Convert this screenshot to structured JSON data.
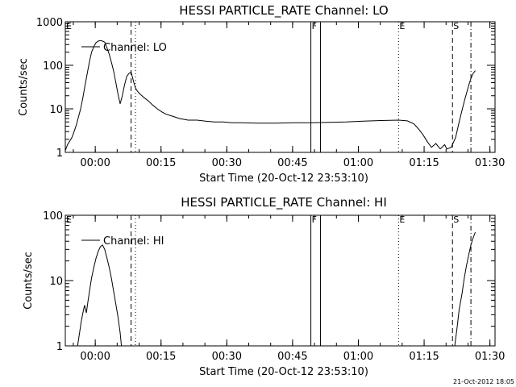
{
  "footer_stamp": "21-Oct-2012 18:05",
  "chart_data": [
    {
      "type": "line",
      "title": "HESSI PARTICLE_RATE Channel: LO",
      "xlabel": "Start Time (20-Oct-12 23:53:10)",
      "ylabel": "Counts/sec",
      "x_unit": "minutes after start",
      "xlim": [
        0,
        98
      ],
      "ylim": [
        1,
        1000
      ],
      "yscale": "log",
      "xticks": [
        {
          "x": 6.83,
          "label": "00:00"
        },
        {
          "x": 21.83,
          "label": "00:15"
        },
        {
          "x": 36.83,
          "label": "00:30"
        },
        {
          "x": 51.83,
          "label": "00:45"
        },
        {
          "x": 66.83,
          "label": "01:00"
        },
        {
          "x": 81.83,
          "label": "01:15"
        },
        {
          "x": 96.83,
          "label": "01:30"
        }
      ],
      "yticks": [
        {
          "y": 1,
          "label": "1"
        },
        {
          "y": 10,
          "label": "10"
        },
        {
          "y": 100,
          "label": "100"
        },
        {
          "y": 1000,
          "label": "1000"
        }
      ],
      "legend": {
        "text": "Channel: LO",
        "position": "top-left"
      },
      "markers": [
        {
          "x": 0.0,
          "label": "E",
          "style": "none"
        },
        {
          "x": 15.0,
          "label": "",
          "style": "dash"
        },
        {
          "x": 16.0,
          "label": "",
          "style": "dot"
        },
        {
          "x": 56.0,
          "label": "F",
          "style": "solid"
        },
        {
          "x": 58.2,
          "label": "",
          "style": "solid"
        },
        {
          "x": 76.0,
          "label": "E",
          "style": "dot"
        },
        {
          "x": 88.3,
          "label": "S",
          "style": "dash"
        },
        {
          "x": 92.5,
          "label": "",
          "style": "dashdot"
        }
      ],
      "series": [
        {
          "values": [
            [
              0.0,
              1.1
            ],
            [
              0.5,
              1.5
            ],
            [
              1.0,
              1.8
            ],
            [
              1.5,
              2.2
            ],
            [
              2.0,
              3.0
            ],
            [
              2.5,
              4.2
            ],
            [
              3.0,
              6.5
            ],
            [
              3.5,
              10
            ],
            [
              4.0,
              18
            ],
            [
              4.5,
              35
            ],
            [
              5.0,
              65
            ],
            [
              5.5,
              120
            ],
            [
              6.0,
              200
            ],
            [
              6.5,
              270
            ],
            [
              7.0,
              330
            ],
            [
              7.5,
              360
            ],
            [
              8.0,
              370
            ],
            [
              8.5,
              360
            ],
            [
              9.0,
              340
            ],
            [
              9.5,
              250
            ],
            [
              10.0,
              180
            ],
            [
              10.5,
              120
            ],
            [
              11.0,
              75
            ],
            [
              11.5,
              42
            ],
            [
              12.0,
              22
            ],
            [
              12.5,
              13
            ],
            [
              13.0,
              20
            ],
            [
              13.5,
              35
            ],
            [
              14.0,
              55
            ],
            [
              14.5,
              65
            ],
            [
              15.0,
              70
            ],
            [
              15.5,
              45
            ],
            [
              16.0,
              30
            ],
            [
              16.5,
              25
            ],
            [
              17.0,
              22
            ],
            [
              18.0,
              18
            ],
            [
              19.0,
              15
            ],
            [
              20.0,
              12
            ],
            [
              21.0,
              10
            ],
            [
              22.0,
              8.5
            ],
            [
              23.0,
              7.5
            ],
            [
              24.0,
              7.0
            ],
            [
              25.0,
              6.5
            ],
            [
              26.0,
              6.0
            ],
            [
              28.0,
              5.5
            ],
            [
              30.0,
              5.5
            ],
            [
              32.0,
              5.2
            ],
            [
              34.0,
              5.0
            ],
            [
              36.0,
              5.0
            ],
            [
              38.0,
              4.8
            ],
            [
              40.0,
              4.8
            ],
            [
              44.0,
              4.7
            ],
            [
              48.0,
              4.7
            ],
            [
              52.0,
              4.8
            ],
            [
              56.0,
              4.8
            ],
            [
              60.0,
              4.9
            ],
            [
              64.0,
              5.0
            ],
            [
              68.0,
              5.2
            ],
            [
              72.0,
              5.4
            ],
            [
              76.0,
              5.5
            ],
            [
              78.0,
              5.3
            ],
            [
              79.5,
              4.5
            ],
            [
              80.5,
              3.5
            ],
            [
              81.5,
              2.6
            ],
            [
              82.5,
              1.8
            ],
            [
              83.5,
              1.3
            ],
            [
              84.5,
              1.6
            ],
            [
              85.5,
              1.2
            ],
            [
              86.5,
              1.5
            ],
            [
              87.0,
              1.2
            ],
            [
              88.0,
              1.3
            ],
            [
              89.0,
              2.2
            ],
            [
              90.0,
              6.0
            ],
            [
              91.0,
              15
            ],
            [
              92.0,
              35
            ],
            [
              92.5,
              50
            ],
            [
              93.0,
              65
            ],
            [
              93.5,
              75
            ]
          ]
        }
      ],
      "grid": false
    },
    {
      "type": "line",
      "title": "HESSI PARTICLE_RATE Channel: HI",
      "xlabel": "Start Time (20-Oct-12 23:53:10)",
      "ylabel": "Counts/sec",
      "x_unit": "minutes after start",
      "xlim": [
        0,
        98
      ],
      "ylim": [
        1,
        100
      ],
      "yscale": "log",
      "xticks": [
        {
          "x": 6.83,
          "label": "00:00"
        },
        {
          "x": 21.83,
          "label": "00:15"
        },
        {
          "x": 36.83,
          "label": "00:30"
        },
        {
          "x": 51.83,
          "label": "00:45"
        },
        {
          "x": 66.83,
          "label": "01:00"
        },
        {
          "x": 81.83,
          "label": "01:15"
        },
        {
          "x": 96.83,
          "label": "01:30"
        }
      ],
      "yticks": [
        {
          "y": 1,
          "label": "1"
        },
        {
          "y": 10,
          "label": "10"
        },
        {
          "y": 100,
          "label": "100"
        }
      ],
      "legend": {
        "text": "Channel: HI",
        "position": "top-left"
      },
      "markers": [
        {
          "x": 0.0,
          "label": "E",
          "style": "none"
        },
        {
          "x": 15.0,
          "label": "",
          "style": "dash"
        },
        {
          "x": 16.0,
          "label": "",
          "style": "dot"
        },
        {
          "x": 56.0,
          "label": "F",
          "style": "solid"
        },
        {
          "x": 58.2,
          "label": "",
          "style": "solid"
        },
        {
          "x": 76.0,
          "label": "E",
          "style": "dot"
        },
        {
          "x": 88.3,
          "label": "S",
          "style": "dash"
        },
        {
          "x": 92.5,
          "label": "",
          "style": "dashdot"
        }
      ],
      "series": [
        {
          "values": [
            [
              2.8,
              1.0
            ],
            [
              3.2,
              1.5
            ],
            [
              3.6,
              2.3
            ],
            [
              4.0,
              3.2
            ],
            [
              4.4,
              4.2
            ],
            [
              4.8,
              3.2
            ],
            [
              5.2,
              5.0
            ],
            [
              5.6,
              7.5
            ],
            [
              6.0,
              11
            ],
            [
              6.5,
              16
            ],
            [
              7.0,
              22
            ],
            [
              7.5,
              28
            ],
            [
              8.0,
              33
            ],
            [
              8.5,
              35
            ],
            [
              9.0,
              30
            ],
            [
              9.5,
              22
            ],
            [
              10.0,
              16
            ],
            [
              10.5,
              11
            ],
            [
              11.0,
              7
            ],
            [
              11.5,
              4.5
            ],
            [
              12.0,
              2.8
            ],
            [
              12.5,
              1.6
            ],
            [
              12.8,
              1.0
            ]
          ]
        },
        {
          "values": [
            [
              88.8,
              1.0
            ],
            [
              89.3,
              1.8
            ],
            [
              89.8,
              3.5
            ],
            [
              90.5,
              6.5
            ],
            [
              91.0,
              11
            ],
            [
              91.5,
              17
            ],
            [
              92.0,
              25
            ],
            [
              92.5,
              35
            ],
            [
              93.0,
              45
            ],
            [
              93.5,
              55
            ]
          ]
        }
      ],
      "grid": false
    }
  ]
}
